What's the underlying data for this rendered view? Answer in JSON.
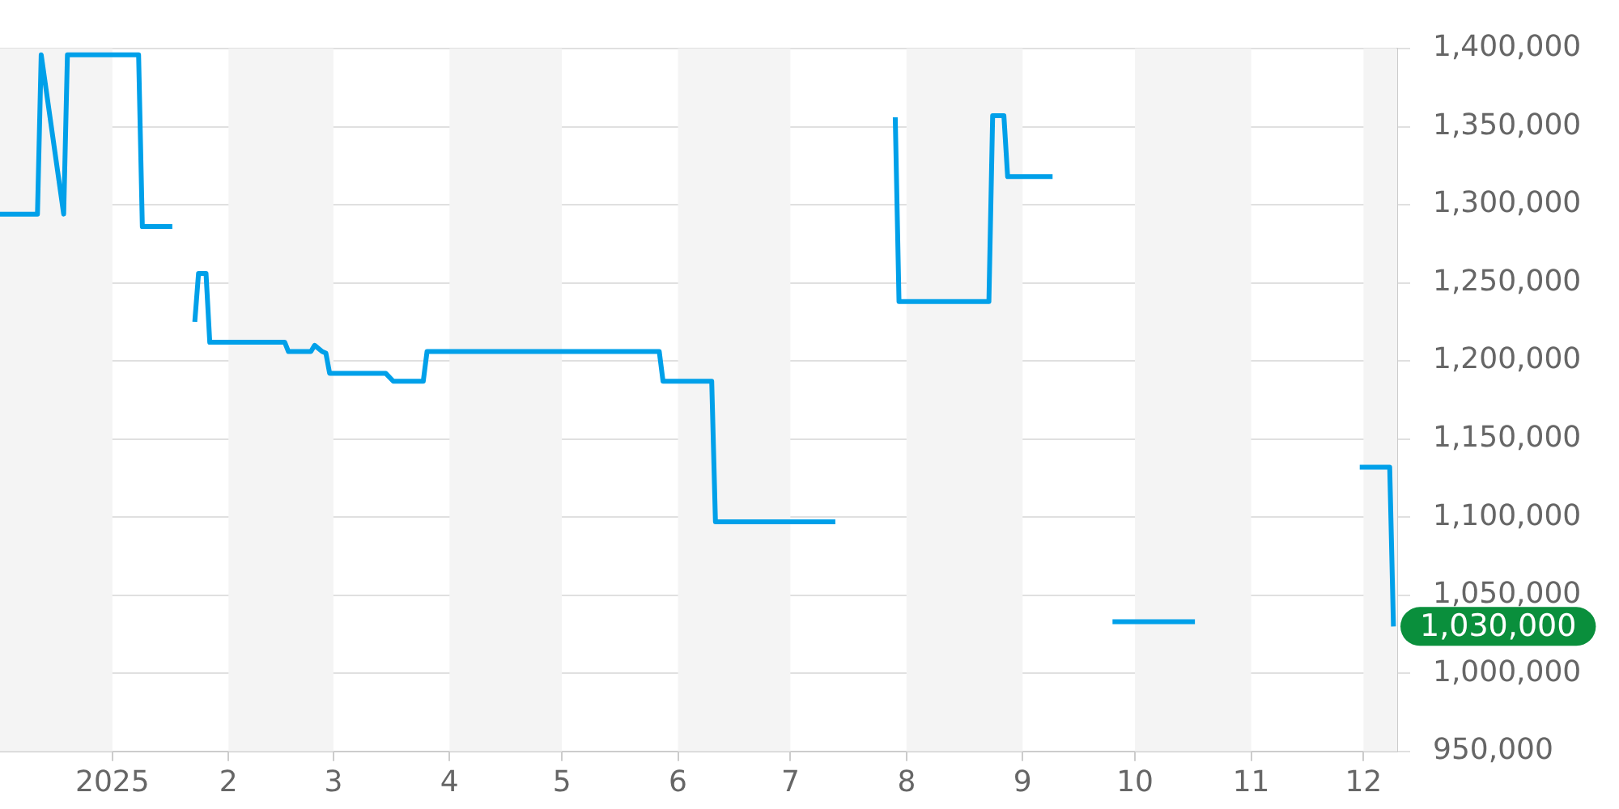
{
  "chart_data": {
    "type": "line",
    "x": [
      "2024-12-02",
      "2024-12-12",
      "2024-12-13",
      "2024-12-19",
      "2024-12-20",
      "2025-01-08",
      "2025-01-09",
      "2025-01-17",
      "2025-01-20",
      "2025-01-23",
      "2025-01-24",
      "2025-01-26",
      "2025-01-27",
      "2025-02-16",
      "2025-02-17",
      "2025-02-23",
      "2025-02-24",
      "2025-02-26",
      "2025-02-27",
      "2025-02-28",
      "2025-03-15",
      "2025-03-17",
      "2025-03-25",
      "2025-03-26",
      "2025-05-27",
      "2025-05-28",
      "2025-06-10",
      "2025-06-11",
      "2025-07-13",
      "2025-07-20",
      "2025-07-29",
      "2025-07-30",
      "2025-08-23",
      "2025-08-24",
      "2025-08-27",
      "2025-08-28",
      "2025-09-09",
      "2025-09-16",
      "2025-09-25",
      "2025-10-17",
      "2025-11-10",
      "2025-11-30",
      "2025-12-08",
      "2025-12-09"
    ],
    "series": [
      {
        "color": "#00a0e9",
        "values": [
          1294000,
          1294000,
          1396000,
          1294000,
          1396000,
          1396000,
          1286000,
          1286000,
          null,
          1225000,
          1256000,
          1256000,
          1212000,
          1212000,
          1206000,
          1206000,
          1210000,
          1206000,
          1205000,
          1192000,
          1192000,
          1187000,
          1187000,
          1206000,
          1206000,
          1187000,
          1187000,
          1097000,
          1097000,
          null,
          1356000,
          1238000,
          1238000,
          1357000,
          1357000,
          1318000,
          1318000,
          null,
          1033000,
          1033000,
          null,
          1132000,
          1132000,
          1030000
        ]
      }
    ],
    "xlim": [
      "2024-12-02",
      "2025-12-10"
    ],
    "xticks": [
      {
        "value": "2025-01",
        "label": "2025"
      },
      {
        "value": "2025-02",
        "label": "2"
      },
      {
        "value": "2025-03",
        "label": "3"
      },
      {
        "value": "2025-04",
        "label": "4"
      },
      {
        "value": "2025-05",
        "label": "5"
      },
      {
        "value": "2025-06",
        "label": "6"
      },
      {
        "value": "2025-07",
        "label": "7"
      },
      {
        "value": "2025-08",
        "label": "8"
      },
      {
        "value": "2025-09",
        "label": "9"
      },
      {
        "value": "2025-10",
        "label": "10"
      },
      {
        "value": "2025-11",
        "label": "11"
      },
      {
        "value": "2025-12",
        "label": "12"
      }
    ],
    "ylim": [
      950000,
      1400000
    ],
    "yticks": [
      {
        "value": 950000,
        "label": "950,000"
      },
      {
        "value": 1000000,
        "label": "1,000,000"
      },
      {
        "value": 1050000,
        "label": "1,050,000"
      },
      {
        "value": 1100000,
        "label": "1,100,000"
      },
      {
        "value": 1150000,
        "label": "1,150,000"
      },
      {
        "value": 1200000,
        "label": "1,200,000"
      },
      {
        "value": 1250000,
        "label": "1,250,000"
      },
      {
        "value": 1300000,
        "label": "1,300,000"
      },
      {
        "value": 1350000,
        "label": "1,350,000"
      },
      {
        "value": 1400000,
        "label": "1,400,000"
      }
    ],
    "bands": [
      {
        "axis": "x",
        "from": "2024-12-02",
        "to": "2025-01-01",
        "color": "#f4f4f4"
      },
      {
        "axis": "x",
        "from": "2025-02-01",
        "to": "2025-03-01",
        "color": "#f4f4f4"
      },
      {
        "axis": "x",
        "from": "2025-04-01",
        "to": "2025-05-01",
        "color": "#f4f4f4"
      },
      {
        "axis": "x",
        "from": "2025-06-01",
        "to": "2025-07-01",
        "color": "#f4f4f4"
      },
      {
        "axis": "x",
        "from": "2025-08-01",
        "to": "2025-09-01",
        "color": "#f4f4f4"
      },
      {
        "axis": "x",
        "from": "2025-10-01",
        "to": "2025-11-01",
        "color": "#f4f4f4"
      },
      {
        "axis": "x",
        "from": "2025-12-01",
        "to": "2025-12-10",
        "color": "#f4f4f4"
      }
    ],
    "annotations": [
      {
        "text": "1,030,000",
        "x": "2025-12-09",
        "y": 1030000
      }
    ],
    "grid": "y",
    "legend": false,
    "marker": "none",
    "line_style": "solid"
  }
}
